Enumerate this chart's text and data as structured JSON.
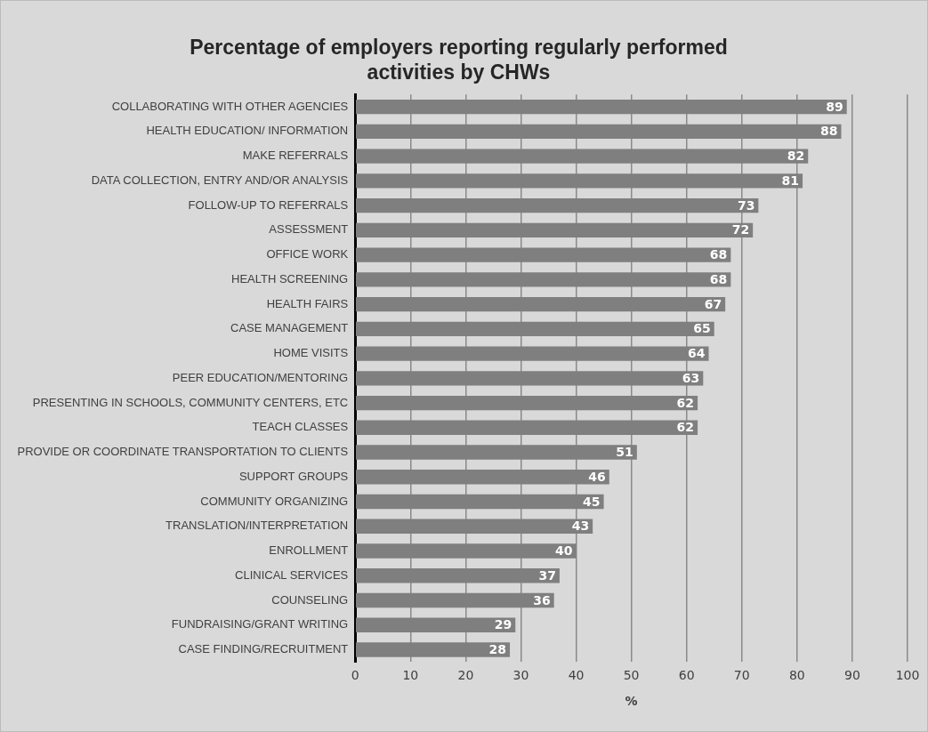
{
  "chart_data": {
    "type": "bar",
    "orientation": "horizontal",
    "title": "Percentage of employers reporting regularly performed activities by CHWs",
    "xlabel": "%",
    "categories": [
      "COLLABORATING WITH OTHER AGENCIES",
      "HEALTH EDUCATION/ INFORMATION",
      "MAKE REFERRALS",
      "DATA COLLECTION, ENTRY AND/OR ANALYSIS",
      "FOLLOW-UP TO REFERRALS",
      "ASSESSMENT",
      "OFFICE WORK",
      "HEALTH SCREENING",
      "HEALTH FAIRS",
      "CASE MANAGEMENT",
      "HOME VISITS",
      "PEER EDUCATION/MENTORING",
      "PRESENTING IN SCHOOLS, COMMUNITY CENTERS, ETC",
      "TEACH CLASSES",
      "PROVIDE OR COORDINATE TRANSPORTATION TO CLIENTS",
      "SUPPORT GROUPS",
      "COMMUNITY ORGANIZING",
      "TRANSLATION/INTERPRETATION",
      "ENROLLMENT",
      "CLINICAL SERVICES",
      "COUNSELING",
      "FUNDRAISING/GRANT WRITING",
      "CASE FINDING/RECRUITMENT"
    ],
    "values": [
      89,
      88,
      82,
      81,
      73,
      72,
      68,
      68,
      67,
      65,
      64,
      63,
      62,
      62,
      51,
      46,
      45,
      43,
      40,
      37,
      36,
      29,
      28
    ],
    "color": "#7f7f7f",
    "xlim": [
      0,
      100
    ],
    "xticks": [
      0,
      10,
      20,
      30,
      40,
      50,
      60,
      70,
      80,
      90,
      100
    ],
    "grid": "x",
    "data_labels": true,
    "legend": false
  }
}
